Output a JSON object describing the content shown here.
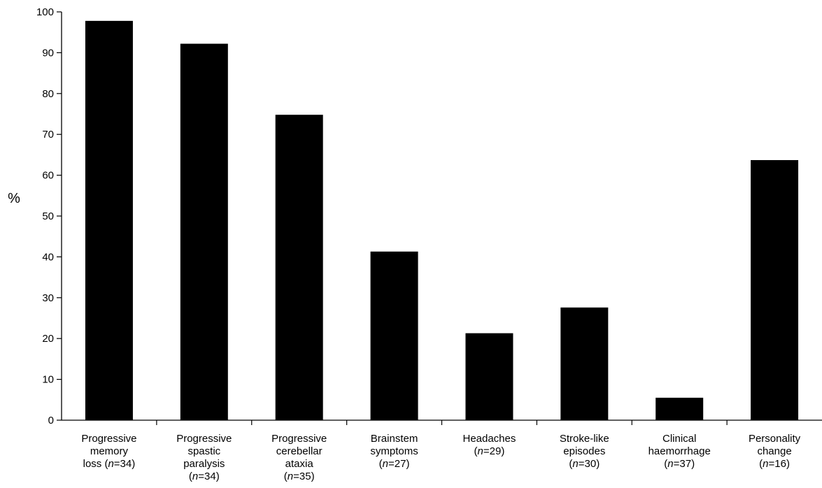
{
  "chart_data": {
    "type": "bar",
    "title": "",
    "xlabel": "",
    "ylabel": "%",
    "ylim": [
      0,
      100
    ],
    "yticks": [
      0,
      10,
      20,
      30,
      40,
      50,
      60,
      70,
      80,
      90,
      100
    ],
    "grid": false,
    "categories": [
      {
        "lines": [
          [
            {
              "t": "Progressive"
            }
          ],
          [
            {
              "t": "memory"
            }
          ],
          [
            {
              "t": "loss ("
            },
            {
              "t": "n",
              "i": true
            },
            {
              "t": "=34)"
            }
          ]
        ]
      },
      {
        "lines": [
          [
            {
              "t": "Progressive"
            }
          ],
          [
            {
              "t": "spastic"
            }
          ],
          [
            {
              "t": "paralysis"
            }
          ],
          [
            {
              "t": "("
            },
            {
              "t": "n",
              "i": true
            },
            {
              "t": "=34)"
            }
          ]
        ]
      },
      {
        "lines": [
          [
            {
              "t": "Progressive"
            }
          ],
          [
            {
              "t": "cerebellar"
            }
          ],
          [
            {
              "t": "ataxia"
            }
          ],
          [
            {
              "t": "("
            },
            {
              "t": "n",
              "i": true
            },
            {
              "t": "=35)"
            }
          ]
        ]
      },
      {
        "lines": [
          [
            {
              "t": "Brainstem"
            }
          ],
          [
            {
              "t": "symptoms"
            }
          ],
          [
            {
              "t": "("
            },
            {
              "t": "n",
              "i": true
            },
            {
              "t": "=27)"
            }
          ]
        ]
      },
      {
        "lines": [
          [
            {
              "t": "Headaches"
            }
          ],
          [
            {
              "t": "("
            },
            {
              "t": "n",
              "i": true
            },
            {
              "t": "=29)"
            }
          ]
        ]
      },
      {
        "lines": [
          [
            {
              "t": "Stroke-like"
            }
          ],
          [
            {
              "t": "episodes"
            }
          ],
          [
            {
              "t": "("
            },
            {
              "t": "n",
              "i": true
            },
            {
              "t": "=30)"
            }
          ]
        ]
      },
      {
        "lines": [
          [
            {
              "t": "Clinical"
            }
          ],
          [
            {
              "t": "haemorrhage"
            }
          ],
          [
            {
              "t": "("
            },
            {
              "t": "n",
              "i": true
            },
            {
              "t": "=37)"
            }
          ]
        ]
      },
      {
        "lines": [
          [
            {
              "t": "Personality"
            }
          ],
          [
            {
              "t": "change"
            }
          ],
          [
            {
              "t": "("
            },
            {
              "t": "n",
              "i": true
            },
            {
              "t": "=16)"
            }
          ]
        ]
      }
    ],
    "values": [
      97.8,
      92.2,
      74.8,
      41.3,
      21.3,
      27.6,
      5.5,
      63.7
    ],
    "bar_color": "#000000"
  }
}
